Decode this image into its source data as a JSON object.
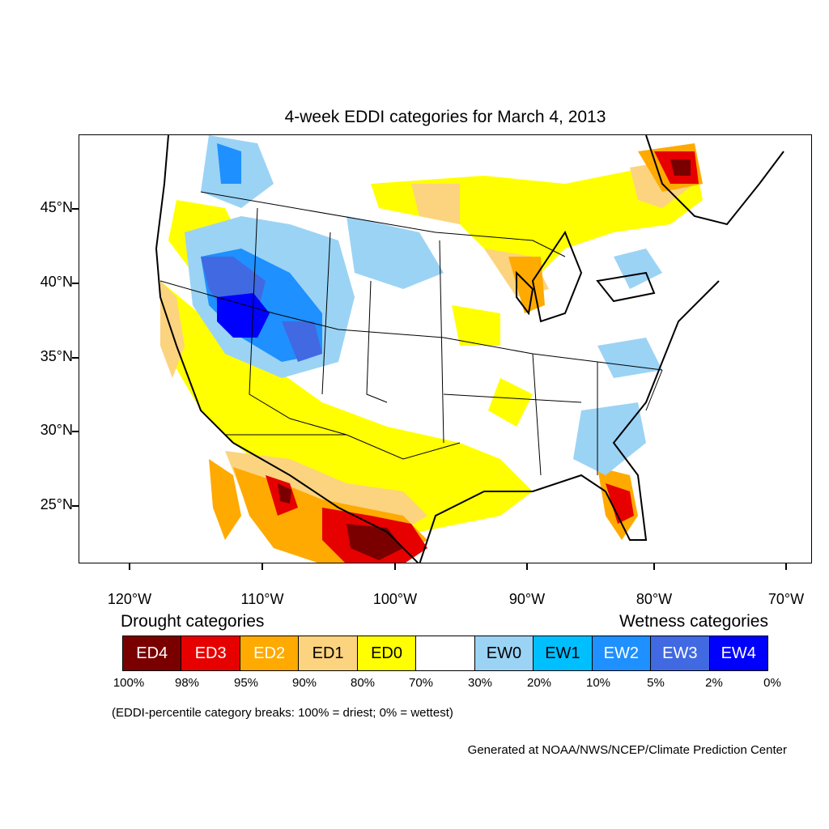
{
  "title": "4-week EDDI categories for March 4, 2013",
  "lat_labels": [
    "45°N",
    "40°N",
    "35°N",
    "30°N",
    "25°N"
  ],
  "lon_labels": [
    "120°W",
    "110°W",
    "100°W",
    "90°W",
    "80°W",
    "70°W"
  ],
  "legend": {
    "drought_title": "Drought categories",
    "wetness_title": "Wetness categories",
    "categories": [
      {
        "label": "ED4",
        "color": "#7a0000",
        "text_color": "#ffffff"
      },
      {
        "label": "ED3",
        "color": "#e60000",
        "text_color": "#ffffff"
      },
      {
        "label": "ED2",
        "color": "#ffaa00",
        "text_color": "#ffffff"
      },
      {
        "label": "ED1",
        "color": "#fcd37f",
        "text_color": "#000000"
      },
      {
        "label": "ED0",
        "color": "#ffff00",
        "text_color": "#000000"
      },
      {
        "label": "",
        "color": "#ffffff",
        "text_color": "#000000"
      },
      {
        "label": "EW0",
        "color": "#9bd3f5",
        "text_color": "#000000"
      },
      {
        "label": "EW1",
        "color": "#00bfff",
        "text_color": "#000000"
      },
      {
        "label": "EW2",
        "color": "#1e90ff",
        "text_color": "#ffffff"
      },
      {
        "label": "EW3",
        "color": "#4169e1",
        "text_color": "#ffffff"
      },
      {
        "label": "EW4",
        "color": "#0000ff",
        "text_color": "#ffffff"
      }
    ],
    "breaks": [
      "100%",
      "98%",
      "95%",
      "90%",
      "80%",
      "70%",
      "30%",
      "20%",
      "10%",
      "5%",
      "2%",
      "0%"
    ]
  },
  "note": "(EDDI-percentile category breaks: 100% = driest; 0% = wettest)",
  "credit": "Generated at NOAA/NWS/NCEP/Climate Prediction Center"
}
